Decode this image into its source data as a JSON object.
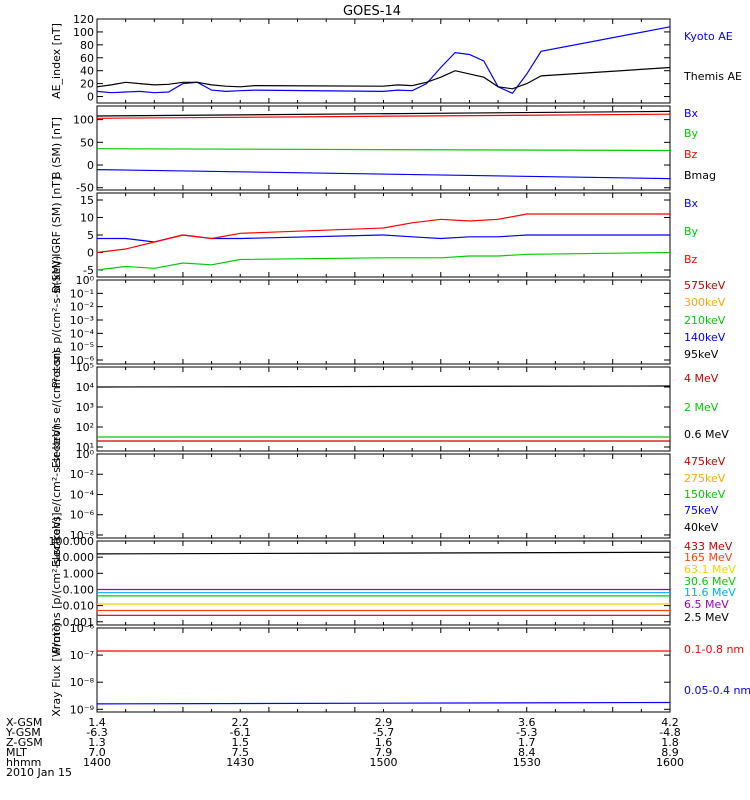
{
  "title": "GOES-14",
  "date_label": "2010 Jan 15",
  "ephemeris": {
    "labels": [
      "X-GSM",
      "Y-GSM",
      "Z-GSM",
      "MLT",
      "hhmm"
    ],
    "columns": [
      [
        "1.4",
        "-6.3",
        "1.3",
        "7.0",
        "1400"
      ],
      [
        "2.2",
        "-6.1",
        "1.5",
        "7.5",
        "1430"
      ],
      [
        "2.9",
        "-5.7",
        "1.6",
        "7.9",
        "1500"
      ],
      [
        "3.6",
        "-5.3",
        "1.7",
        "8.4",
        "1530"
      ],
      [
        "4.2",
        "-4.8",
        "1.8",
        "8.9",
        "1600"
      ]
    ]
  },
  "chart_data": [
    {
      "type": "line",
      "ylabel": "AE_index [nT]",
      "ylim": [
        -10,
        120
      ],
      "ticks": [
        "0",
        "20",
        "40",
        "60",
        "80",
        "100",
        "120"
      ],
      "tick_values": [
        0,
        20,
        40,
        60,
        80,
        100,
        120
      ],
      "x": [
        1400,
        1405,
        1410,
        1415,
        1420,
        1425,
        1430,
        1435,
        1440,
        1445,
        1450,
        1455,
        1500,
        1505,
        1510,
        1515,
        1520,
        1525,
        1530,
        1535,
        1540,
        1545,
        1550,
        1555,
        1600
      ],
      "series": [
        {
          "name": "Kyoto AE",
          "color": "#0000ff",
          "values": [
            8,
            6,
            7,
            8,
            6,
            7,
            20,
            22,
            10,
            8,
            9,
            10,
            8,
            10,
            9,
            20,
            45,
            68,
            65,
            55,
            15,
            5,
            35,
            70,
            108
          ]
        },
        {
          "name": "Themis AE",
          "color": "#000000",
          "values": [
            15,
            18,
            22,
            20,
            18,
            19,
            22,
            22,
            18,
            16,
            15,
            17,
            16,
            18,
            17,
            22,
            30,
            40,
            35,
            30,
            15,
            12,
            20,
            32,
            45
          ]
        }
      ]
    },
    {
      "type": "line",
      "ylabel": "B (SM) [nT]",
      "ylim": [
        -55,
        130
      ],
      "ticks": [
        "-50",
        "0",
        "50",
        "100"
      ],
      "tick_values": [
        -50,
        0,
        50,
        100
      ],
      "x": [
        1400,
        1600
      ],
      "series": [
        {
          "name": "Bx",
          "color": "#0000ff",
          "values": [
            -10,
            -30
          ]
        },
        {
          "name": "By",
          "color": "#00cc00",
          "values": [
            36,
            32
          ]
        },
        {
          "name": "Bz",
          "color": "#ff0000",
          "values": [
            103,
            112
          ]
        },
        {
          "name": "Bmag",
          "color": "#000000",
          "values": [
            108,
            118
          ]
        }
      ]
    },
    {
      "type": "line",
      "ylabel": "B(SM)-IGRF (SM) [nT]",
      "ylim": [
        -7,
        17
      ],
      "ticks": [
        "-5",
        "0",
        "5",
        "10",
        "15"
      ],
      "tick_values": [
        -5,
        0,
        5,
        10,
        15
      ],
      "x": [
        1400,
        1410,
        1420,
        1430,
        1440,
        1450,
        1500,
        1510,
        1520,
        1530,
        1540,
        1550,
        1600
      ],
      "series": [
        {
          "name": "Bx",
          "color": "#0000ff",
          "values": [
            4,
            4,
            3,
            5,
            4,
            4,
            5,
            4.5,
            4,
            4.5,
            4.5,
            5,
            5
          ]
        },
        {
          "name": "By",
          "color": "#00cc00",
          "values": [
            -5,
            -4,
            -4.5,
            -3,
            -3.5,
            -2,
            -1.5,
            -1.5,
            -1.5,
            -1,
            -1,
            -0.5,
            0
          ]
        },
        {
          "name": "Bz",
          "color": "#ff0000",
          "values": [
            0,
            1,
            3,
            5,
            4,
            5.5,
            7,
            8.5,
            9.5,
            9,
            9.5,
            11,
            11
          ]
        }
      ]
    },
    {
      "type": "line",
      "log": true,
      "ylabel": "Protons p/(cm²-s-sr-keV)",
      "ylim": [
        -6.3,
        0
      ],
      "ticks": [
        "10⁰",
        "10⁻¹",
        "10⁻²",
        "10⁻³",
        "10⁻⁴",
        "10⁻⁵",
        "10⁻⁶"
      ],
      "tick_values": [
        0,
        -1,
        -2,
        -3,
        -4,
        -5,
        -6
      ],
      "series": [
        {
          "name": "575keV",
          "color": "#cc0000",
          "values": []
        },
        {
          "name": "300keV",
          "color": "#ffaa00",
          "values": []
        },
        {
          "name": "210keV",
          "color": "#00cc00",
          "values": []
        },
        {
          "name": "140keV",
          "color": "#0000ff",
          "values": []
        },
        {
          "name": "95keV",
          "color": "#000000",
          "values": []
        }
      ]
    },
    {
      "type": "line",
      "log": true,
      "ylabel": "Electrons e/(cm²-s-sr)",
      "ylim": [
        0.8,
        5
      ],
      "ticks": [
        "10¹",
        "10²",
        "10³",
        "10⁴",
        "10⁵"
      ],
      "tick_values": [
        1,
        2,
        3,
        4,
        5
      ],
      "x": [
        1400,
        1600
      ],
      "series": [
        {
          "name": "4 MeV",
          "color": "#cc0000",
          "values": [
            1.3,
            1.3
          ]
        },
        {
          "name": "2 MeV",
          "color": "#00cc00",
          "values": [
            1.5,
            1.5
          ]
        },
        {
          "name": "0.6 MeV",
          "color": "#000000",
          "values": [
            4.0,
            4.05
          ]
        }
      ]
    },
    {
      "type": "line",
      "log": true,
      "ylabel": "Electrons e/(cm²-s-sr-keV)",
      "ylim": [
        -8.3,
        0
      ],
      "ticks": [
        "10⁰",
        "10⁻²",
        "10⁻⁴",
        "10⁻⁶",
        "10⁻⁸"
      ],
      "tick_values": [
        0,
        -2,
        -4,
        -6,
        -8
      ],
      "series": [
        {
          "name": "475keV",
          "color": "#cc0000",
          "values": []
        },
        {
          "name": "275keV",
          "color": "#ffaa00",
          "values": []
        },
        {
          "name": "150keV",
          "color": "#00cc00",
          "values": []
        },
        {
          "name": "75keV",
          "color": "#0000ff",
          "values": []
        },
        {
          "name": "40keV",
          "color": "#000000",
          "values": []
        }
      ]
    },
    {
      "type": "line",
      "log": true,
      "ylabel": "Protons [p/(cm²-s-sr-keV)]",
      "ylim": [
        -3.2,
        2
      ],
      "ticks": [
        "0.001",
        "0.010",
        "0.100",
        "1.000",
        "10.000",
        "100.000"
      ],
      "tick_values": [
        -3,
        -2,
        -1,
        0,
        1,
        2
      ],
      "x": [
        1400,
        1600
      ],
      "series": [
        {
          "name": "433 MeV",
          "color": "#cc0000",
          "values": [
            -2.6,
            -2.6
          ]
        },
        {
          "name": "165 MeV",
          "color": "#ff4400",
          "values": [
            -2.3,
            -2.3
          ]
        },
        {
          "name": "63.1 MeV",
          "color": "#ffcc00",
          "values": [
            -1.9,
            -1.9
          ]
        },
        {
          "name": "30.6 MeV",
          "color": "#00cc00",
          "values": [
            -1.4,
            -1.4
          ]
        },
        {
          "name": "11.6 MeV",
          "color": "#00aaff",
          "values": [
            -1.2,
            -1.2
          ]
        },
        {
          "name": "6.5 MeV",
          "color": "#9900cc",
          "values": [
            -1.0,
            -1.0
          ]
        },
        {
          "name": "2.5 MeV",
          "color": "#000000",
          "values": [
            1.2,
            1.3
          ]
        }
      ]
    },
    {
      "type": "line",
      "log": true,
      "ylabel": "Xray Flux [W/m²]",
      "ylim": [
        -9.1,
        -6
      ],
      "ticks": [
        "10⁻⁶",
        "10⁻⁷",
        "10⁻⁸",
        "10⁻⁹"
      ],
      "tick_values": [
        -6,
        -7,
        -8,
        -9
      ],
      "x": [
        1400,
        1600
      ],
      "series": [
        {
          "name": "0.1-0.8 nm",
          "color": "#ff0000",
          "values": [
            -6.85,
            -6.85
          ]
        },
        {
          "name": "0.05-0.4 nm",
          "color": "#0000ff",
          "values": [
            -8.8,
            -8.75
          ]
        }
      ]
    }
  ]
}
